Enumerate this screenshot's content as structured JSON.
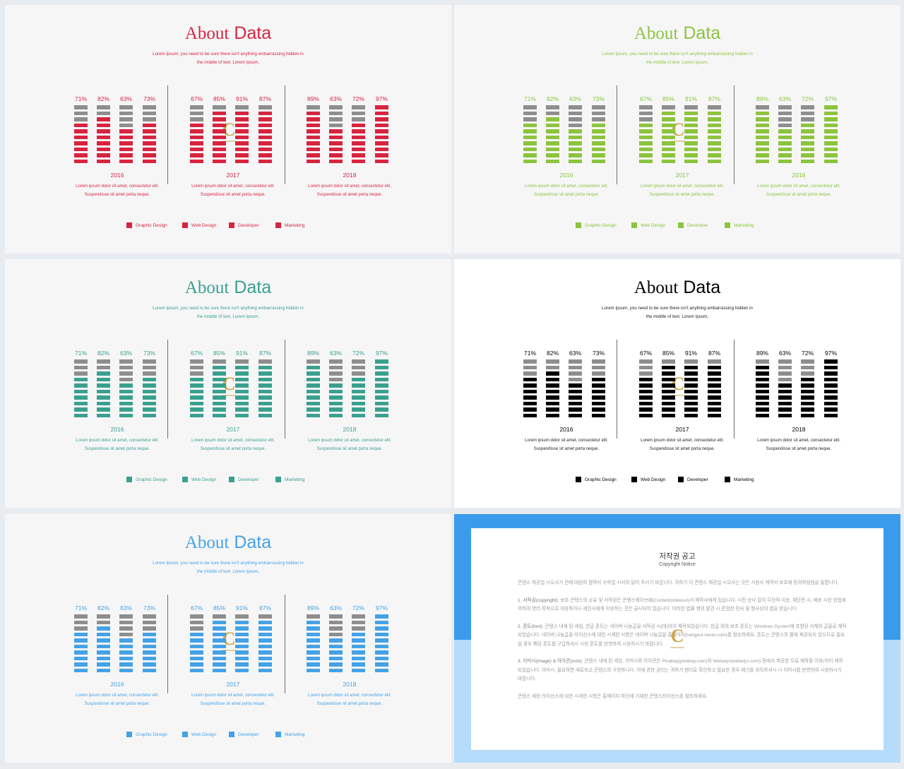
{
  "variants": [
    {
      "id": "red",
      "accent": "#d7243f",
      "subtitle_color": "#d7243f",
      "text_color": "#d7243f",
      "heading_color": "#d7243f",
      "white_bg": false
    },
    {
      "id": "green",
      "accent": "#8cc43e",
      "subtitle_color": "#8cc43e",
      "text_color": "#8cc43e",
      "heading_color": "#8cc43e",
      "white_bg": false
    },
    {
      "id": "teal",
      "accent": "#3aa08e",
      "subtitle_color": "#3aa08e",
      "text_color": "#3aa08e",
      "heading_color": "#3aa08e",
      "white_bg": false
    },
    {
      "id": "black",
      "accent": "#000000",
      "subtitle_color": "#222222",
      "text_color": "#000000",
      "heading_color": "#000000",
      "white_bg": true
    },
    {
      "id": "blue",
      "accent": "#45a2e6",
      "subtitle_color": "#45a2e6",
      "text_color": "#45a2e6",
      "heading_color": "#45a2e6",
      "white_bg": false
    }
  ],
  "slide": {
    "title_about": "About",
    "title_data": "Data",
    "subtitle_line1": "Lorem  Ipsum, you need to be sure there  isn't anything embarrassing hidden in",
    "subtitle_line2": "the middle of text.  Lorem  Ipsum,",
    "group_desc_line1": "Lorem  ipsum dolor sit amet, consectetur elit.",
    "group_desc_line2": "Suspendisse sit amet porta neque.",
    "legend": [
      "Graphic Design",
      "Web Design",
      "Developer",
      "Marketing"
    ]
  },
  "chart_data": {
    "type": "bar",
    "series_names": [
      "Graphic Design",
      "Web Design",
      "Developer",
      "Marketing"
    ],
    "groups": [
      {
        "year": "2016",
        "labels": [
          "71%",
          "82%",
          "63%",
          "73%"
        ],
        "values": [
          71,
          82,
          63,
          73
        ]
      },
      {
        "year": "2017",
        "labels": [
          "67%",
          "85%",
          "91%",
          "87%"
        ],
        "values": [
          67,
          85,
          91,
          87
        ]
      },
      {
        "year": "2018",
        "labels": [
          "89%",
          "63%",
          "72%",
          "97%"
        ],
        "values": [
          89,
          63,
          72,
          97
        ]
      }
    ],
    "ylim": [
      0,
      100
    ]
  },
  "copyright": {
    "title": "저작권 공고",
    "subtitle": "Copyright Notice",
    "intro": "콘텐스 제공업 시오사기 전에 대원의 협약서 수락업 시서의 읽어 주시기 바랍니다. 귀하기 이 콘텐스 제공업 시오사는 것은 시용사 계약서 보조에 동의하셨음을 말합니다.",
    "p1_head": "1. 서작권(copyright):",
    "p1": "보조 콘텐스의 소유 및 서작권은 콘텐스웨이브에(Contentstokeout)서 제작사에게 있습니다. 시전 승낙 없이 무단적 이용, 재단전 시, 배포 시한 방법에 의하여 영리 목적으로 이용하거나 세인사에게 이용하는 것은 금시되어 있습니다. 이러한 법률 행위 발견 시 준엄한 민사 및 형사상의 벌을 받습니다.",
    "p2_head": "2. 폰트(font):",
    "p2": "콘텐스 내에 된 세임, 한글 폰트는 네이버 나눔글꼴 서작권 시(대)아이 제작되었습니다. 한글 외의 보조 폰트는 Windows System에 포함된 서체와 글꼴로 제작되었습니다. 네이버 나눔글꼴 라이선스에 대한 시세한 시항은 네이버 나눔글꼴 홈페이지(hangeul.naver.com)를 참조하세요. 폰트는 콘텐스의 활에 제공되지 않으므로 필요일 경우 해당 폰트를 구입하셔시 시용 폰트를 반영하여 시용하시기 바랍니다.",
    "p3_head": "3. 이미시(image) & 아이콘(icon):",
    "p3": "콘텐스 내에 된 세임, 이미시와 아이콘은 Pixabay(pixabay.com)와 Webalys(webalys.com) 등에서 제공한 무료 제작물 이용(아이 제작되었습니다. 이미시, 필요하면 세로되고 콘텐스의 구현하니다. 이에 관한 권리는 귀하기 벤더로 확인하고 필요한 경우 예기를 취득하셔시 나 이미시를 반영하여 시용하시기 바랍니다.",
    "outro": "콘텐스 세용 라이선스에 대한 시세한 시항은 홈페이지 하단에 기재한 콘텐스라이선스를 참조하세요."
  }
}
